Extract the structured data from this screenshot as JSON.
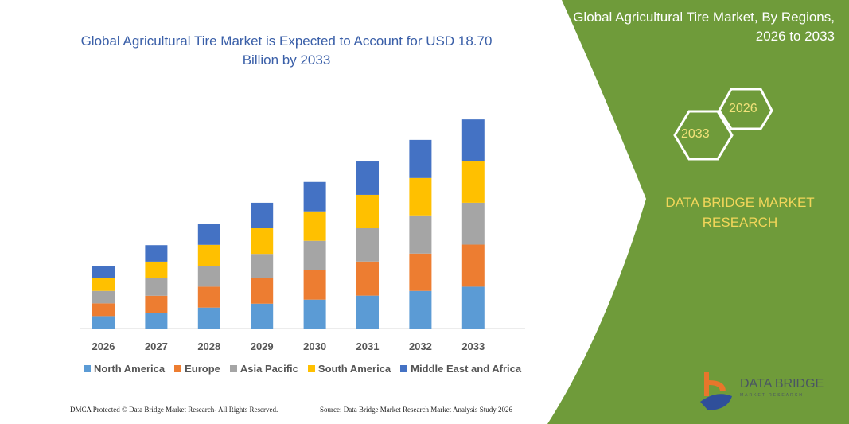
{
  "header": {
    "title": "Global Agricultural Tire Market is Expected to Account for USD 18.70 Billion by 2033"
  },
  "side_panel": {
    "title": "Global Agricultural Tire Market, By Regions, 2026 to 2033",
    "hex_2026": "2026",
    "hex_2033": "2033",
    "brand": "DATA BRIDGE MARKET RESEARCH",
    "logo_text": "DATA BRIDGE",
    "logo_sub": "MARKET RESEARCH",
    "panel_color": "#6f9b3a"
  },
  "footer": {
    "left": "DMCA Protected © Data Bridge Market Research- All Rights Reserved.",
    "right": "Source: Data Bridge Market Research Market Analysis Study 2026"
  },
  "chart_data": {
    "type": "bar",
    "stacked": true,
    "title": "Global Agricultural Tire Market is Expected to Account for USD 18.70 Billion by 2033",
    "xlabel": "",
    "ylabel": "",
    "y_axis_visible": false,
    "grid": false,
    "legend_position": "bottom",
    "ylim": [
      0,
      18.7
    ],
    "categories": [
      "2026",
      "2027",
      "2028",
      "2029",
      "2030",
      "2031",
      "2032",
      "2033"
    ],
    "series": [
      {
        "name": "North America",
        "color": "#5b9bd5",
        "values": [
          1.11,
          1.42,
          1.87,
          2.22,
          2.58,
          2.94,
          3.36,
          3.74
        ]
      },
      {
        "name": "Europe",
        "color": "#ed7d31",
        "values": [
          1.14,
          1.51,
          1.87,
          2.27,
          2.63,
          3.05,
          3.34,
          3.76
        ]
      },
      {
        "name": "Asia Pacific",
        "color": "#a5a5a5",
        "values": [
          1.11,
          1.56,
          1.82,
          2.18,
          2.63,
          2.98,
          3.41,
          3.74
        ]
      },
      {
        "name": "South America",
        "color": "#ffc000",
        "values": [
          1.14,
          1.49,
          1.92,
          2.3,
          2.63,
          2.98,
          3.34,
          3.69
        ]
      },
      {
        "name": "Middle East and Africa",
        "color": "#4472c4",
        "values": [
          1.07,
          1.47,
          1.85,
          2.27,
          2.63,
          2.98,
          3.41,
          3.76
        ]
      }
    ]
  }
}
